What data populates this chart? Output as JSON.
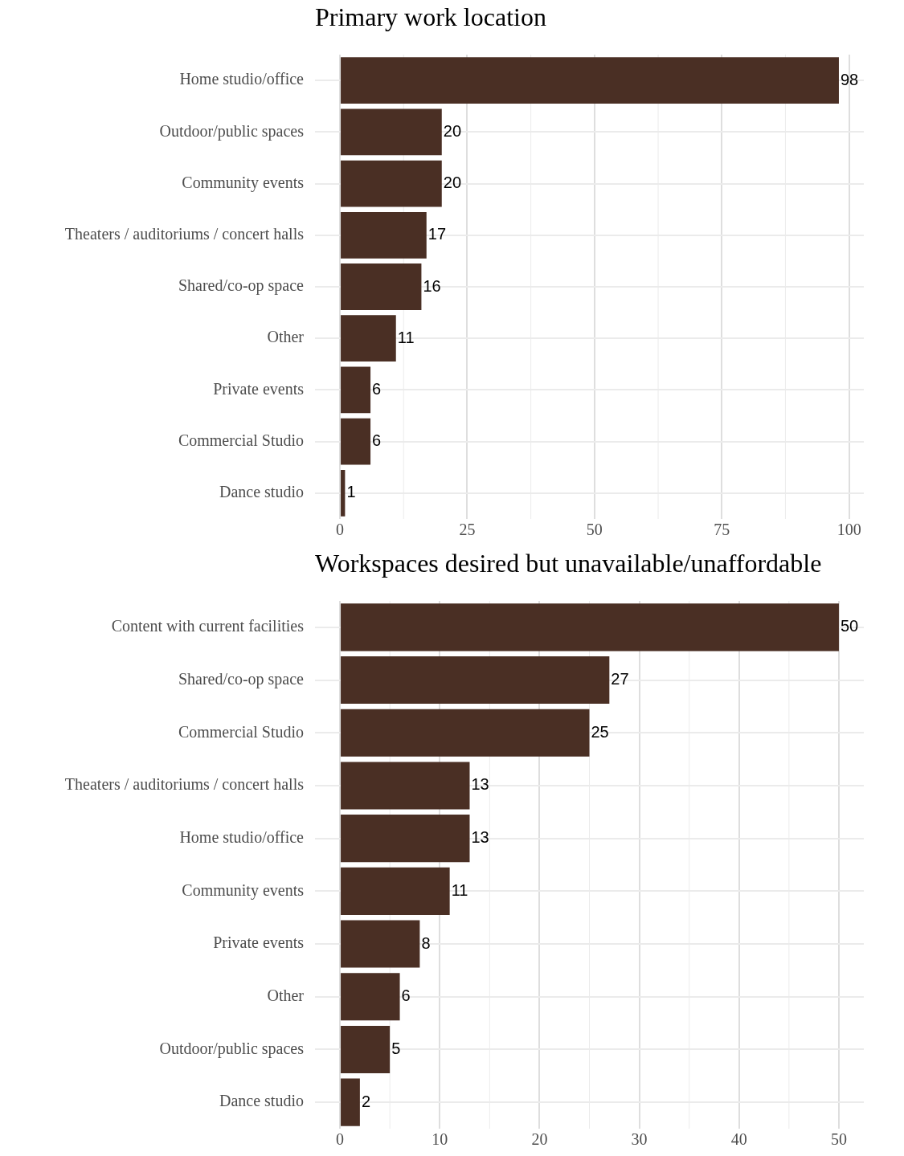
{
  "chart_data": [
    {
      "type": "bar",
      "orientation": "horizontal",
      "title": "Primary work location",
      "categories": [
        "Home studio/office",
        "Outdoor/public spaces",
        "Community events",
        "Theaters / auditoriums / concert halls",
        "Shared/co-op space",
        "Other",
        "Private events",
        "Commercial Studio",
        "Dance studio"
      ],
      "values": [
        98,
        20,
        20,
        17,
        16,
        11,
        6,
        6,
        1
      ],
      "color": "#4a2f24",
      "xlim": [
        -4.9,
        102.9
      ],
      "xticks": [
        0,
        25,
        50,
        75,
        100
      ],
      "grid": true,
      "data_labels": true
    },
    {
      "type": "bar",
      "orientation": "horizontal",
      "title": "Workspaces desired but unavailable/unaffordable",
      "categories": [
        "Content with current facilities",
        "Shared/co-op space",
        "Commercial Studio",
        "Theaters / auditoriums / concert halls",
        "Home studio/office",
        "Community events",
        "Private events",
        "Other",
        "Outdoor/public spaces",
        "Dance studio"
      ],
      "values": [
        50,
        27,
        25,
        13,
        13,
        11,
        8,
        6,
        5,
        2
      ],
      "color": "#4a2f24",
      "xlim": [
        -2.5,
        52.5
      ],
      "xticks": [
        0,
        10,
        20,
        30,
        40,
        50
      ],
      "grid": true,
      "data_labels": true
    }
  ]
}
